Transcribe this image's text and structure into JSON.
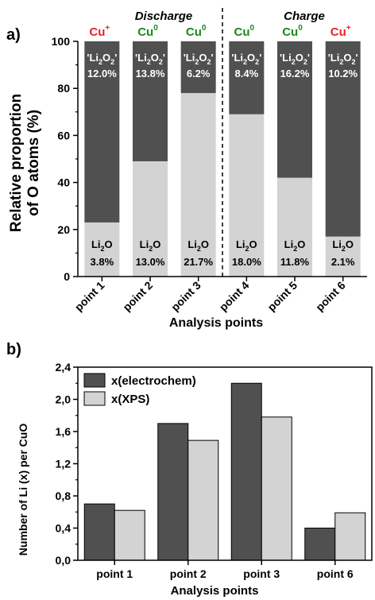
{
  "colors": {
    "dark": "#505050",
    "light": "#d3d3d3",
    "cu_plus": "#e8202a",
    "cu_zero": "#1a8a1a",
    "axis": "#000000",
    "label_on_dark": "#ffffff",
    "label_on_light": "#000000"
  },
  "chart_data": [
    {
      "type": "bar",
      "stacked": true,
      "panel_label": "a)",
      "xlabel": "Analysis points",
      "ylabel_line1": "Relative proportion",
      "ylabel_line2": "of O atoms (%)",
      "ylim": [
        0,
        100
      ],
      "yticks": [
        "0",
        "20",
        "40",
        "60",
        "80",
        "100"
      ],
      "categories": [
        "point 1",
        "point 2",
        "point 3",
        "point 4",
        "point 5",
        "point 6"
      ],
      "series": [
        {
          "name": "Li2O",
          "values": [
            23,
            49,
            78,
            69,
            42,
            17
          ]
        },
        {
          "name": "'Li2O2'",
          "values": [
            77,
            51,
            22,
            31,
            58,
            83
          ]
        }
      ],
      "section_labels": [
        "Discharge",
        "Charge"
      ],
      "copper_states": [
        {
          "base": "Cu",
          "sup": "+",
          "state": "plus"
        },
        {
          "base": "Cu",
          "sup": "0",
          "state": "zero"
        },
        {
          "base": "Cu",
          "sup": "0",
          "state": "zero"
        },
        {
          "base": "Cu",
          "sup": "0",
          "state": "zero"
        },
        {
          "base": "Cu",
          "sup": "0",
          "state": "zero"
        },
        {
          "base": "Cu",
          "sup": "+",
          "state": "plus"
        }
      ],
      "top_species": {
        "pre": "'Li",
        "sub": "2",
        "mid": "O",
        "sub2": "2",
        "post": "'"
      },
      "bottom_species": {
        "pre": "Li",
        "sub": "2",
        "post": "O"
      },
      "top_labels": [
        "12.0%",
        "13.8%",
        "6.2%",
        "8.4%",
        "16.2%",
        "10.2%"
      ],
      "bottom_labels": [
        "3.8%",
        "13.0%",
        "21.7%",
        "18.0%",
        "11.8%",
        "2.1%"
      ],
      "grid": false,
      "divider_after_category": 3
    },
    {
      "type": "bar",
      "panel_label": "b)",
      "xlabel": "Analysis points",
      "ylabel": "Number of Li (x) per CuO",
      "ylim": [
        0,
        2.4
      ],
      "yticks": [
        "0,0",
        "0,4",
        "0,8",
        "1,2",
        "1,6",
        "2,0",
        "2,4"
      ],
      "categories": [
        "point 1",
        "point 2",
        "point 3",
        "point 6"
      ],
      "series": [
        {
          "name": "x(electrochem)",
          "values": [
            0.7,
            1.7,
            2.2,
            0.4
          ]
        },
        {
          "name": "x(XPS)",
          "values": [
            0.62,
            1.49,
            1.78,
            0.59
          ]
        }
      ],
      "legend_position": "top-left",
      "grid": false
    }
  ]
}
